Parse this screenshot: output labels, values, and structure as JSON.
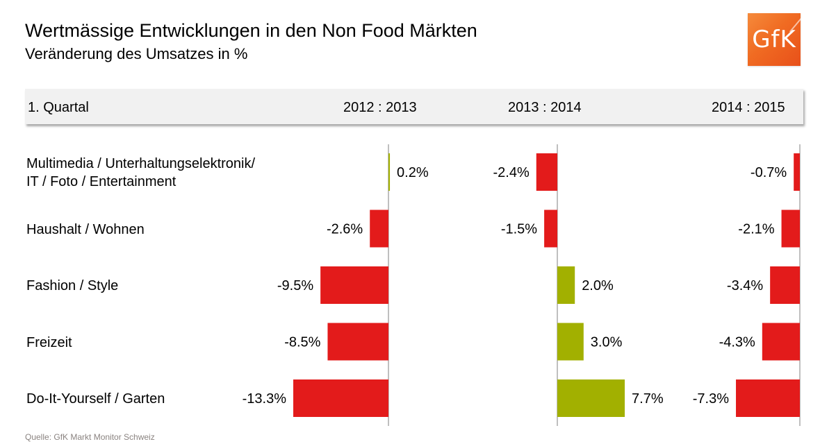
{
  "header": {
    "title": "Wertmässige Entwicklungen in den Non Food Märkten",
    "subtitle": "Veränderung des Umsatzes in %",
    "logo_text": "GfK"
  },
  "band": {
    "period_label": "1. Quartal",
    "columns": [
      "2012 : 2013",
      "2013 : 2014",
      "2014 : 2015"
    ]
  },
  "footer": {
    "source": "Quelle: GfK Markt Monitor Schweiz"
  },
  "colors": {
    "negative": "#e31b1b",
    "positive": "#a2b000",
    "axis": "#aaaaaa",
    "band": "#f1f1f1",
    "logo": "#f06b22"
  },
  "chart_data": {
    "type": "bar",
    "orientation": "horizontal",
    "title": "Wertmässige Entwicklungen in den Non Food Märkten",
    "subtitle": "Veränderung des Umsatzes in %",
    "categories": [
      [
        "Multimedia / Unterhaltungselektronik/",
        "IT / Foto / Entertainment"
      ],
      [
        "Haushalt / Wohnen"
      ],
      [
        "Fashion / Style"
      ],
      [
        "Freizeit"
      ],
      [
        "Do-It-Yourself / Garten"
      ]
    ],
    "unit": "%",
    "series": [
      {
        "name": "2012 : 2013",
        "values": [
          0.2,
          -2.6,
          -9.5,
          -8.5,
          -13.3
        ],
        "labels": [
          "0.2%",
          "-2.6%",
          "-9.5%",
          "-8.5%",
          "-13.3%"
        ]
      },
      {
        "name": "2013 : 2014",
        "values": [
          -2.4,
          -1.5,
          2.0,
          3.0,
          7.7
        ],
        "labels": [
          "-2.4%",
          "-1.5%",
          "2.0%",
          "3.0%",
          "7.7%"
        ]
      },
      {
        "name": "2014 : 2015",
        "values": [
          -0.7,
          -2.1,
          -3.4,
          -4.3,
          -7.3
        ],
        "labels": [
          "-0.7%",
          "-2.1%",
          "-3.4%",
          "-4.3%",
          "-7.3%"
        ]
      }
    ],
    "grid": false,
    "legend": "none",
    "source": "Quelle: GfK Markt Monitor Schweiz"
  }
}
